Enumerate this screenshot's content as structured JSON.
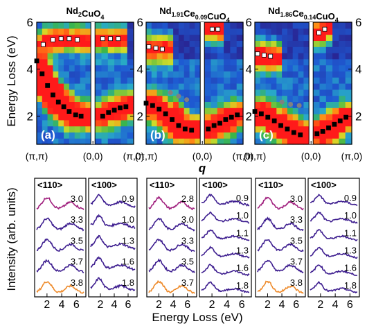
{
  "figure": {
    "y_axis_top": "Energy Loss (eV)",
    "y_axis_bottom": "Intensity (arb. units)",
    "x_axis_middle": "q",
    "x_axis_bottom": "Energy Loss (eV)"
  },
  "colors": {
    "map_low": "#2a1f8c",
    "map_mid": "#3ab54a",
    "map_high": "#ff1a1a",
    "spectrum_main": "#3d1d8f",
    "spectrum_top": "#a0207e",
    "spectrum_bottom": "#ee8a2a",
    "gray_marker": "#808080"
  },
  "chart_data": [
    {
      "type": "heatmap",
      "panel": "a",
      "title_base": "Nd",
      "title_parts": [
        {
          "text": "Nd",
          "sub": "2"
        },
        {
          "text": "CuO",
          "sub": "4"
        }
      ],
      "label": "(a)",
      "ylim": [
        0.8,
        6
      ],
      "yticks": [
        2,
        4,
        6
      ],
      "xtick_labels": [
        "(π,π)",
        "(0,0)",
        "(π,0)"
      ],
      "white_markers_left": [
        [
          0.12,
          5.05
        ],
        [
          0.3,
          5.25
        ],
        [
          0.45,
          5.3
        ],
        [
          0.6,
          5.3
        ],
        [
          0.75,
          5.25
        ]
      ],
      "white_markers_right": [
        [
          0.2,
          5.3
        ],
        [
          0.4,
          5.3
        ],
        [
          0.6,
          5.3
        ]
      ],
      "black_markers_left": [
        [
          0.0,
          4.35
        ],
        [
          0.1,
          3.8
        ],
        [
          0.2,
          3.3
        ],
        [
          0.3,
          2.9
        ],
        [
          0.4,
          2.6
        ],
        [
          0.5,
          2.4
        ],
        [
          0.6,
          2.2
        ],
        [
          0.72,
          2.05
        ],
        [
          0.82,
          2.0
        ]
      ],
      "black_markers_right": [
        [
          0.2,
          2.0
        ],
        [
          0.35,
          2.15
        ],
        [
          0.5,
          2.25
        ],
        [
          0.65,
          2.35
        ],
        [
          0.8,
          2.4
        ]
      ],
      "gray_markers_left": []
    },
    {
      "type": "heatmap",
      "panel": "b",
      "title_parts": [
        {
          "text": "Nd",
          "sub": "1.91"
        },
        {
          "text": "Ce",
          "sub": "0.09"
        },
        {
          "text": "CuO",
          "sub": "4"
        }
      ],
      "label": "(b)",
      "ylim": [
        0.8,
        6
      ],
      "yticks": [
        2,
        4,
        6
      ],
      "xtick_labels": [
        "(π,π)",
        "(0,0)",
        "(π,0)"
      ],
      "white_markers_left": [
        [
          0.05,
          4.95
        ],
        [
          0.18,
          4.9
        ],
        [
          0.3,
          4.85
        ]
      ],
      "white_markers_right": [
        [
          0.2,
          5.7
        ],
        [
          0.35,
          5.7
        ]
      ],
      "black_markers_left": [
        [
          0.0,
          2.55
        ],
        [
          0.12,
          2.45
        ],
        [
          0.24,
          2.3
        ],
        [
          0.36,
          2.1
        ],
        [
          0.48,
          1.85
        ],
        [
          0.6,
          1.6
        ],
        [
          0.72,
          1.45
        ],
        [
          0.84,
          1.4
        ]
      ],
      "black_markers_right": [
        [
          0.1,
          1.45
        ],
        [
          0.25,
          1.6
        ],
        [
          0.4,
          1.7
        ],
        [
          0.55,
          1.85
        ],
        [
          0.7,
          1.95
        ],
        [
          0.85,
          2.05
        ]
      ],
      "gray_markers_left": [
        [
          0.45,
          3.0
        ],
        [
          0.6,
          2.85
        ],
        [
          0.75,
          2.7
        ]
      ]
    },
    {
      "type": "heatmap",
      "panel": "c",
      "title_parts": [
        {
          "text": "Nd",
          "sub": "1.86"
        },
        {
          "text": "Ce",
          "sub": "0.14"
        },
        {
          "text": "CuO",
          "sub": "4"
        }
      ],
      "label": "(c)",
      "ylim": [
        0.8,
        6
      ],
      "yticks": [
        2,
        4,
        6
      ],
      "xtick_labels": [
        "(π,π)",
        "(0,0)",
        "(π,0)"
      ],
      "white_markers_left": [
        [
          0.05,
          4.65
        ],
        [
          0.17,
          4.6
        ],
        [
          0.29,
          4.55
        ]
      ],
      "white_markers_right": [
        [
          0.15,
          5.55
        ],
        [
          0.3,
          5.7
        ]
      ],
      "black_markers_left": [
        [
          0.0,
          2.2
        ],
        [
          0.12,
          2.1
        ],
        [
          0.24,
          1.95
        ],
        [
          0.36,
          1.8
        ],
        [
          0.48,
          1.6
        ],
        [
          0.6,
          1.45
        ],
        [
          0.72,
          1.3
        ],
        [
          0.84,
          1.2
        ]
      ],
      "black_markers_right": [
        [
          0.1,
          1.25
        ],
        [
          0.25,
          1.35
        ],
        [
          0.4,
          1.5
        ],
        [
          0.55,
          1.65
        ],
        [
          0.7,
          1.8
        ],
        [
          0.85,
          1.95
        ]
      ],
      "gray_markers_left": [
        [
          0.5,
          2.6
        ],
        [
          0.66,
          2.5
        ],
        [
          0.82,
          2.45
        ]
      ]
    },
    {
      "type": "line",
      "panel": "a-spectra",
      "xlabel": "Energy Loss (eV)",
      "xticks": [
        2,
        4,
        6
      ],
      "groups": [
        {
          "header": "<110>",
          "q_labels": [
            "3.0",
            "3.3",
            "3.5",
            "3.7",
            "3.8"
          ]
        },
        {
          "header": "<100>",
          "q_labels": [
            "0.9",
            "1.0",
            "1.3",
            "1.6",
            "1.8"
          ]
        }
      ]
    },
    {
      "type": "line",
      "panel": "b-spectra",
      "xlabel": "Energy Loss (eV)",
      "xticks": [
        2,
        4,
        6
      ],
      "groups": [
        {
          "header": "<110>",
          "q_labels": [
            "2.8",
            "3.0",
            "3.3",
            "3.5",
            "3.7"
          ]
        },
        {
          "header": "<100>",
          "q_labels": [
            "0.9",
            "1.0",
            "1.1",
            "1.3",
            "1.6",
            "1.8"
          ]
        }
      ]
    },
    {
      "type": "line",
      "panel": "c-spectra",
      "xlabel": "Energy Loss (eV)",
      "xticks": [
        2,
        4,
        6
      ],
      "groups": [
        {
          "header": "<110>",
          "q_labels": [
            "3.0",
            "3.3",
            "3.5",
            "3.7",
            "3.8"
          ]
        },
        {
          "header": "<100>",
          "q_labels": [
            "0.9",
            "1.0",
            "1.1",
            "1.3",
            "1.6",
            "1.8"
          ]
        }
      ]
    }
  ]
}
